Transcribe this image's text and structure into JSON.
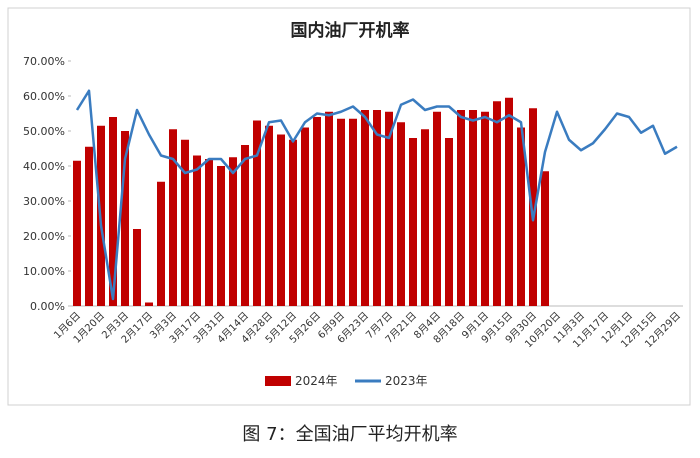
{
  "caption": "图 7：全国油厂平均开机率",
  "chart_data": {
    "type": "bar-line",
    "title": "国内油厂开机率",
    "categories": [
      "1月6日",
      null,
      "1月20日",
      null,
      "2月3日",
      null,
      "2月17日",
      null,
      "3月3日",
      null,
      "3月17日",
      null,
      "3月31日",
      null,
      "4月14日",
      null,
      "4月28日",
      null,
      "5月12日",
      null,
      "5月26日",
      null,
      "6月9日",
      null,
      "6月23日",
      null,
      "7月7日",
      null,
      "7月21日",
      null,
      "8月4日",
      null,
      "8月18日",
      null,
      "9月1日",
      null,
      "9月15日",
      null,
      "9月30日",
      null,
      "10月20日",
      null,
      "11月3日",
      null,
      "11月17日",
      null,
      "12月1日",
      null,
      "12月15日",
      null,
      "12月29日"
    ],
    "series": [
      {
        "name": "2024年",
        "kind": "bar",
        "color": "#c00000",
        "values": [
          41.5,
          45.5,
          51.5,
          54,
          50,
          22,
          1,
          35.5,
          50.5,
          47.5,
          43,
          42,
          40,
          42.5,
          46,
          53,
          51.5,
          49,
          47.5,
          51,
          54,
          55.5,
          53.5,
          53.5,
          56,
          56,
          55.5,
          52.5,
          48,
          50.5,
          55.5,
          48,
          56,
          56,
          55.5,
          58.5,
          59.5,
          51,
          56.5,
          38.5,
          null,
          null,
          null,
          null,
          null,
          null,
          null,
          null,
          null,
          null,
          null
        ]
      },
      {
        "name": "2023年",
        "kind": "line",
        "color": "#3a7cc0",
        "values": [
          56,
          61.5,
          23,
          2,
          42,
          56,
          49,
          43,
          42,
          38,
          39,
          42,
          42,
          38,
          42,
          43,
          52.5,
          53,
          47,
          52.5,
          55,
          54.5,
          55.5,
          57,
          54,
          49,
          48,
          57.5,
          59,
          56,
          57,
          57,
          54,
          53,
          54,
          52.5,
          54.5,
          52.5,
          24.5,
          44,
          55.5,
          47.5,
          44.5,
          46.5,
          50.5,
          55,
          54,
          49.5,
          51.5,
          43.5,
          45.5
        ]
      }
    ],
    "ylim": [
      0,
      70
    ],
    "yticks": [
      {
        "value": 0,
        "label": "0.00%"
      },
      {
        "value": 10,
        "label": "10.00%"
      },
      {
        "value": 20,
        "label": "20.00%"
      },
      {
        "value": 30,
        "label": "30.00%"
      },
      {
        "value": 40,
        "label": "40.00%"
      },
      {
        "value": 50,
        "label": "50.00%"
      },
      {
        "value": 60,
        "label": "60.00%"
      },
      {
        "value": 70,
        "label": "70.00%"
      }
    ],
    "legend": "bottom"
  }
}
